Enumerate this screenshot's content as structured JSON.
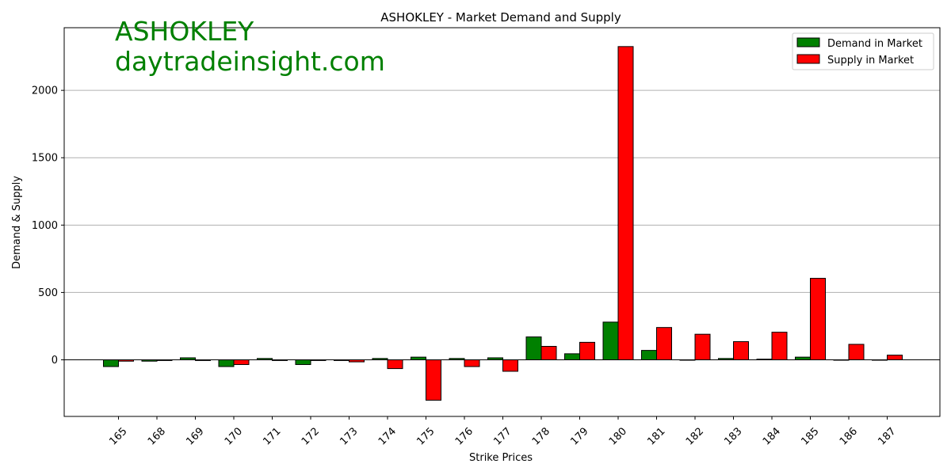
{
  "watermark": {
    "line1": "ASHOKLEY",
    "line2": "daytradeinsight.com",
    "color": "#008000"
  },
  "chart_data": {
    "type": "bar",
    "title": "ASHOKLEY - Market Demand and Supply",
    "xlabel": "Strike Prices",
    "ylabel": "Demand & Supply",
    "categories": [
      "165",
      "168",
      "169",
      "170",
      "171",
      "172",
      "173",
      "174",
      "175",
      "176",
      "177",
      "178",
      "179",
      "180",
      "181",
      "182",
      "183",
      "184",
      "185",
      "186",
      "187"
    ],
    "series": [
      {
        "name": "Demand in Market",
        "color": "#008000",
        "values": [
          -50,
          -10,
          15,
          -50,
          10,
          -35,
          -5,
          10,
          20,
          10,
          15,
          170,
          45,
          280,
          70,
          0,
          10,
          5,
          20,
          0,
          0
        ]
      },
      {
        "name": "Supply in Market",
        "color": "#ff0000",
        "values": [
          -10,
          -5,
          -5,
          -35,
          -5,
          -5,
          -15,
          -65,
          -300,
          -50,
          -85,
          100,
          130,
          2325,
          240,
          190,
          135,
          205,
          605,
          115,
          35
        ]
      }
    ],
    "ylim": [
      -420,
      2465
    ],
    "yticks": [
      0,
      500,
      1000,
      1500,
      2000
    ],
    "grid": "horizontal",
    "legend": "top-right"
  }
}
